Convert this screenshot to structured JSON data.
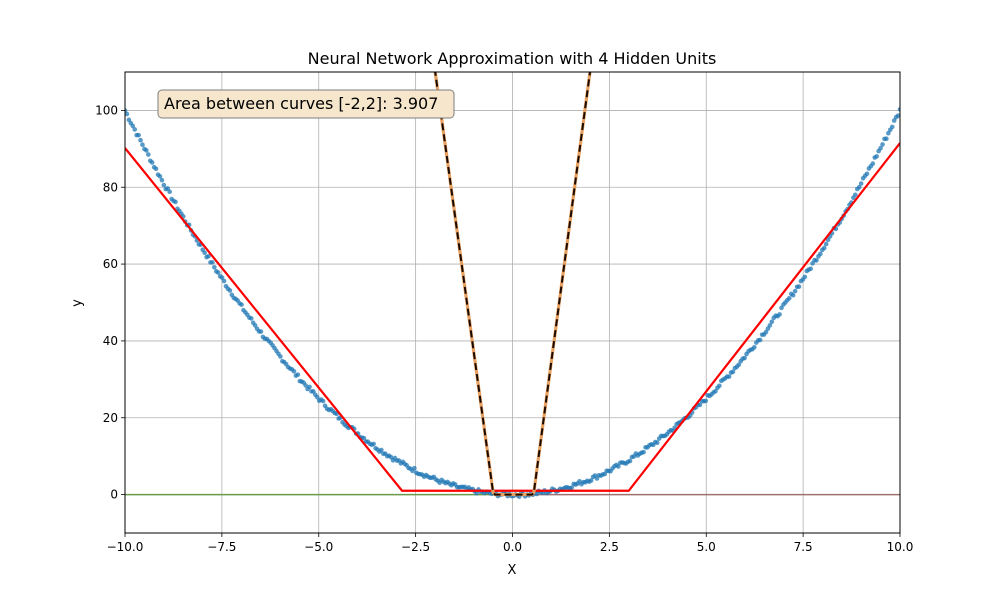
{
  "chart_data": {
    "type": "line",
    "title": "Neural Network Approximation with 4 Hidden Units",
    "xlabel": "X",
    "ylabel": "y",
    "xlim": [
      -10,
      10
    ],
    "ylim": [
      -10,
      110
    ],
    "xticks": [
      -10,
      -7.5,
      -5,
      -2.5,
      0,
      2.5,
      5,
      7.5,
      10
    ],
    "xtick_labels": [
      "−10.0",
      "−7.5",
      "−5.0",
      "−2.5",
      "0.0",
      "2.5",
      "5.0",
      "7.5",
      "10.0"
    ],
    "yticks": [
      0,
      20,
      40,
      60,
      80,
      100
    ],
    "ytick_labels": [
      "0",
      "20",
      "40",
      "60",
      "80",
      "100"
    ],
    "grid": true,
    "annotation": {
      "text": "Area between curves [-2,2]: 3.907",
      "position": "top-left"
    },
    "series": [
      {
        "kind": "scatter",
        "color": "#1f77b4",
        "function": "x^2",
        "x_range": [
          -10,
          10
        ],
        "points": 400
      },
      {
        "kind": "line",
        "color": "#ff0000",
        "style": "solid",
        "x": [
          -10,
          -2.85,
          3.0,
          10
        ],
        "y": [
          90.2,
          1.0,
          1.0,
          91.5
        ]
      },
      {
        "kind": "line",
        "color": "#1a0a00",
        "style": "dashed",
        "x": [
          -2.2,
          -0.5,
          -0.45,
          0.5,
          0.55,
          2.0
        ],
        "y": [
          125,
          0.5,
          0,
          0,
          0.5,
          110
        ]
      },
      {
        "kind": "line",
        "color": "#6b9a4a",
        "style": "solid",
        "x": [
          -10,
          0
        ],
        "y": [
          0,
          0
        ]
      },
      {
        "kind": "line",
        "color": "#a07070",
        "style": "solid",
        "x": [
          0,
          10
        ],
        "y": [
          0,
          0
        ]
      }
    ]
  }
}
